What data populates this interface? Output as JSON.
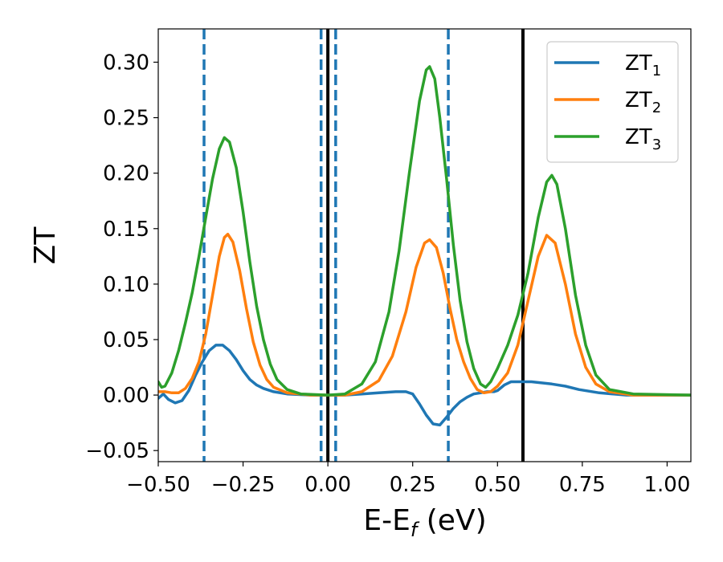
{
  "chart_data": {
    "type": "line",
    "xlabel": "E-E_f (eV)",
    "xlabel_parts": {
      "base": "E-E",
      "sub": "f",
      "unit": " (eV)"
    },
    "ylabel": "ZT",
    "xlim": [
      -0.5,
      1.07
    ],
    "ylim": [
      -0.06,
      0.33
    ],
    "xticks": [
      -0.5,
      -0.25,
      0.0,
      0.25,
      0.5,
      0.75,
      1.0
    ],
    "xtick_labels": [
      "−0.50",
      "−0.25",
      "0.00",
      "0.25",
      "0.50",
      "0.75",
      "1.00"
    ],
    "yticks": [
      -0.05,
      0.0,
      0.05,
      0.1,
      0.15,
      0.2,
      0.25,
      0.3
    ],
    "ytick_labels": [
      "−0.05",
      "0.00",
      "0.05",
      "0.10",
      "0.15",
      "0.20",
      "0.25",
      "0.30"
    ],
    "grid": false,
    "legend_position": "top-right",
    "series": [
      {
        "name": "ZT_1",
        "label_base": "ZT",
        "label_sub": "1",
        "color": "#1f77b4",
        "points": [
          [
            -0.5,
            -0.003
          ],
          [
            -0.485,
            0.001
          ],
          [
            -0.47,
            -0.004
          ],
          [
            -0.45,
            -0.007
          ],
          [
            -0.43,
            -0.005
          ],
          [
            -0.41,
            0.004
          ],
          [
            -0.39,
            0.018
          ],
          [
            -0.37,
            0.03
          ],
          [
            -0.35,
            0.04
          ],
          [
            -0.33,
            0.045
          ],
          [
            -0.31,
            0.045
          ],
          [
            -0.29,
            0.04
          ],
          [
            -0.27,
            0.032
          ],
          [
            -0.25,
            0.022
          ],
          [
            -0.23,
            0.014
          ],
          [
            -0.21,
            0.009
          ],
          [
            -0.19,
            0.006
          ],
          [
            -0.16,
            0.003
          ],
          [
            -0.12,
            0.001
          ],
          [
            -0.05,
            0.0
          ],
          [
            0.05,
            0.0
          ],
          [
            0.1,
            0.001
          ],
          [
            0.15,
            0.002
          ],
          [
            0.2,
            0.003
          ],
          [
            0.23,
            0.003
          ],
          [
            0.25,
            0.001
          ],
          [
            0.27,
            -0.008
          ],
          [
            0.29,
            -0.018
          ],
          [
            0.31,
            -0.026
          ],
          [
            0.33,
            -0.027
          ],
          [
            0.35,
            -0.02
          ],
          [
            0.37,
            -0.012
          ],
          [
            0.39,
            -0.006
          ],
          [
            0.41,
            -0.002
          ],
          [
            0.43,
            0.001
          ],
          [
            0.45,
            0.002
          ],
          [
            0.47,
            0.003
          ],
          [
            0.49,
            0.003
          ],
          [
            0.5,
            0.004
          ],
          [
            0.52,
            0.009
          ],
          [
            0.54,
            0.012
          ],
          [
            0.57,
            0.012
          ],
          [
            0.6,
            0.012
          ],
          [
            0.63,
            0.011
          ],
          [
            0.66,
            0.01
          ],
          [
            0.7,
            0.008
          ],
          [
            0.74,
            0.005
          ],
          [
            0.8,
            0.002
          ],
          [
            0.88,
            0.0
          ],
          [
            1.07,
            0.0
          ]
        ]
      },
      {
        "name": "ZT_2",
        "label_base": "ZT",
        "label_sub": "2",
        "color": "#ff7f0e",
        "points": [
          [
            -0.5,
            0.003
          ],
          [
            -0.48,
            0.003
          ],
          [
            -0.46,
            0.002
          ],
          [
            -0.44,
            0.002
          ],
          [
            -0.42,
            0.006
          ],
          [
            -0.4,
            0.015
          ],
          [
            -0.38,
            0.03
          ],
          [
            -0.36,
            0.055
          ],
          [
            -0.34,
            0.09
          ],
          [
            -0.32,
            0.125
          ],
          [
            -0.305,
            0.142
          ],
          [
            -0.295,
            0.145
          ],
          [
            -0.28,
            0.138
          ],
          [
            -0.26,
            0.112
          ],
          [
            -0.24,
            0.078
          ],
          [
            -0.22,
            0.048
          ],
          [
            -0.2,
            0.027
          ],
          [
            -0.18,
            0.014
          ],
          [
            -0.16,
            0.007
          ],
          [
            -0.12,
            0.002
          ],
          [
            -0.05,
            0.0
          ],
          [
            0.05,
            0.0
          ],
          [
            0.1,
            0.003
          ],
          [
            0.15,
            0.013
          ],
          [
            0.19,
            0.035
          ],
          [
            0.23,
            0.075
          ],
          [
            0.26,
            0.115
          ],
          [
            0.285,
            0.137
          ],
          [
            0.3,
            0.14
          ],
          [
            0.32,
            0.133
          ],
          [
            0.34,
            0.11
          ],
          [
            0.36,
            0.078
          ],
          [
            0.38,
            0.05
          ],
          [
            0.4,
            0.03
          ],
          [
            0.42,
            0.015
          ],
          [
            0.44,
            0.005
          ],
          [
            0.46,
            0.002
          ],
          [
            0.48,
            0.003
          ],
          [
            0.5,
            0.008
          ],
          [
            0.53,
            0.02
          ],
          [
            0.56,
            0.045
          ],
          [
            0.59,
            0.085
          ],
          [
            0.62,
            0.125
          ],
          [
            0.645,
            0.144
          ],
          [
            0.67,
            0.137
          ],
          [
            0.7,
            0.1
          ],
          [
            0.73,
            0.055
          ],
          [
            0.76,
            0.025
          ],
          [
            0.79,
            0.01
          ],
          [
            0.83,
            0.003
          ],
          [
            0.9,
            0.0
          ],
          [
            1.07,
            0.0
          ]
        ]
      },
      {
        "name": "ZT_3",
        "label_base": "ZT",
        "label_sub": "3",
        "color": "#2ca02c",
        "points": [
          [
            -0.5,
            0.012
          ],
          [
            -0.49,
            0.007
          ],
          [
            -0.48,
            0.008
          ],
          [
            -0.46,
            0.02
          ],
          [
            -0.44,
            0.04
          ],
          [
            -0.42,
            0.065
          ],
          [
            -0.4,
            0.092
          ],
          [
            -0.38,
            0.125
          ],
          [
            -0.36,
            0.16
          ],
          [
            -0.34,
            0.195
          ],
          [
            -0.32,
            0.222
          ],
          [
            -0.305,
            0.232
          ],
          [
            -0.29,
            0.228
          ],
          [
            -0.27,
            0.205
          ],
          [
            -0.25,
            0.165
          ],
          [
            -0.23,
            0.12
          ],
          [
            -0.21,
            0.08
          ],
          [
            -0.19,
            0.05
          ],
          [
            -0.17,
            0.028
          ],
          [
            -0.15,
            0.014
          ],
          [
            -0.12,
            0.005
          ],
          [
            -0.08,
            0.001
          ],
          [
            0.0,
            0.0
          ],
          [
            0.05,
            0.001
          ],
          [
            0.1,
            0.01
          ],
          [
            0.14,
            0.03
          ],
          [
            0.18,
            0.075
          ],
          [
            0.21,
            0.13
          ],
          [
            0.24,
            0.2
          ],
          [
            0.27,
            0.265
          ],
          [
            0.29,
            0.293
          ],
          [
            0.3,
            0.296
          ],
          [
            0.315,
            0.285
          ],
          [
            0.33,
            0.25
          ],
          [
            0.35,
            0.195
          ],
          [
            0.37,
            0.135
          ],
          [
            0.39,
            0.085
          ],
          [
            0.41,
            0.048
          ],
          [
            0.43,
            0.024
          ],
          [
            0.45,
            0.01
          ],
          [
            0.465,
            0.007
          ],
          [
            0.48,
            0.012
          ],
          [
            0.5,
            0.024
          ],
          [
            0.53,
            0.045
          ],
          [
            0.56,
            0.072
          ],
          [
            0.59,
            0.11
          ],
          [
            0.62,
            0.16
          ],
          [
            0.645,
            0.192
          ],
          [
            0.66,
            0.198
          ],
          [
            0.675,
            0.19
          ],
          [
            0.7,
            0.15
          ],
          [
            0.73,
            0.09
          ],
          [
            0.76,
            0.045
          ],
          [
            0.79,
            0.018
          ],
          [
            0.83,
            0.005
          ],
          [
            0.9,
            0.001
          ],
          [
            1.07,
            0.0
          ]
        ]
      }
    ],
    "vertical_lines": [
      {
        "x": -0.365,
        "style": "dashed",
        "color": "#1f77b4"
      },
      {
        "x": -0.02,
        "style": "dashed",
        "color": "#1f77b4"
      },
      {
        "x": 0.023,
        "style": "dashed",
        "color": "#1f77b4"
      },
      {
        "x": 0.355,
        "style": "dashed",
        "color": "#1f77b4"
      },
      {
        "x": 0.0,
        "style": "solid",
        "color": "#000000"
      },
      {
        "x": 0.575,
        "style": "solid",
        "color": "#000000"
      }
    ]
  }
}
